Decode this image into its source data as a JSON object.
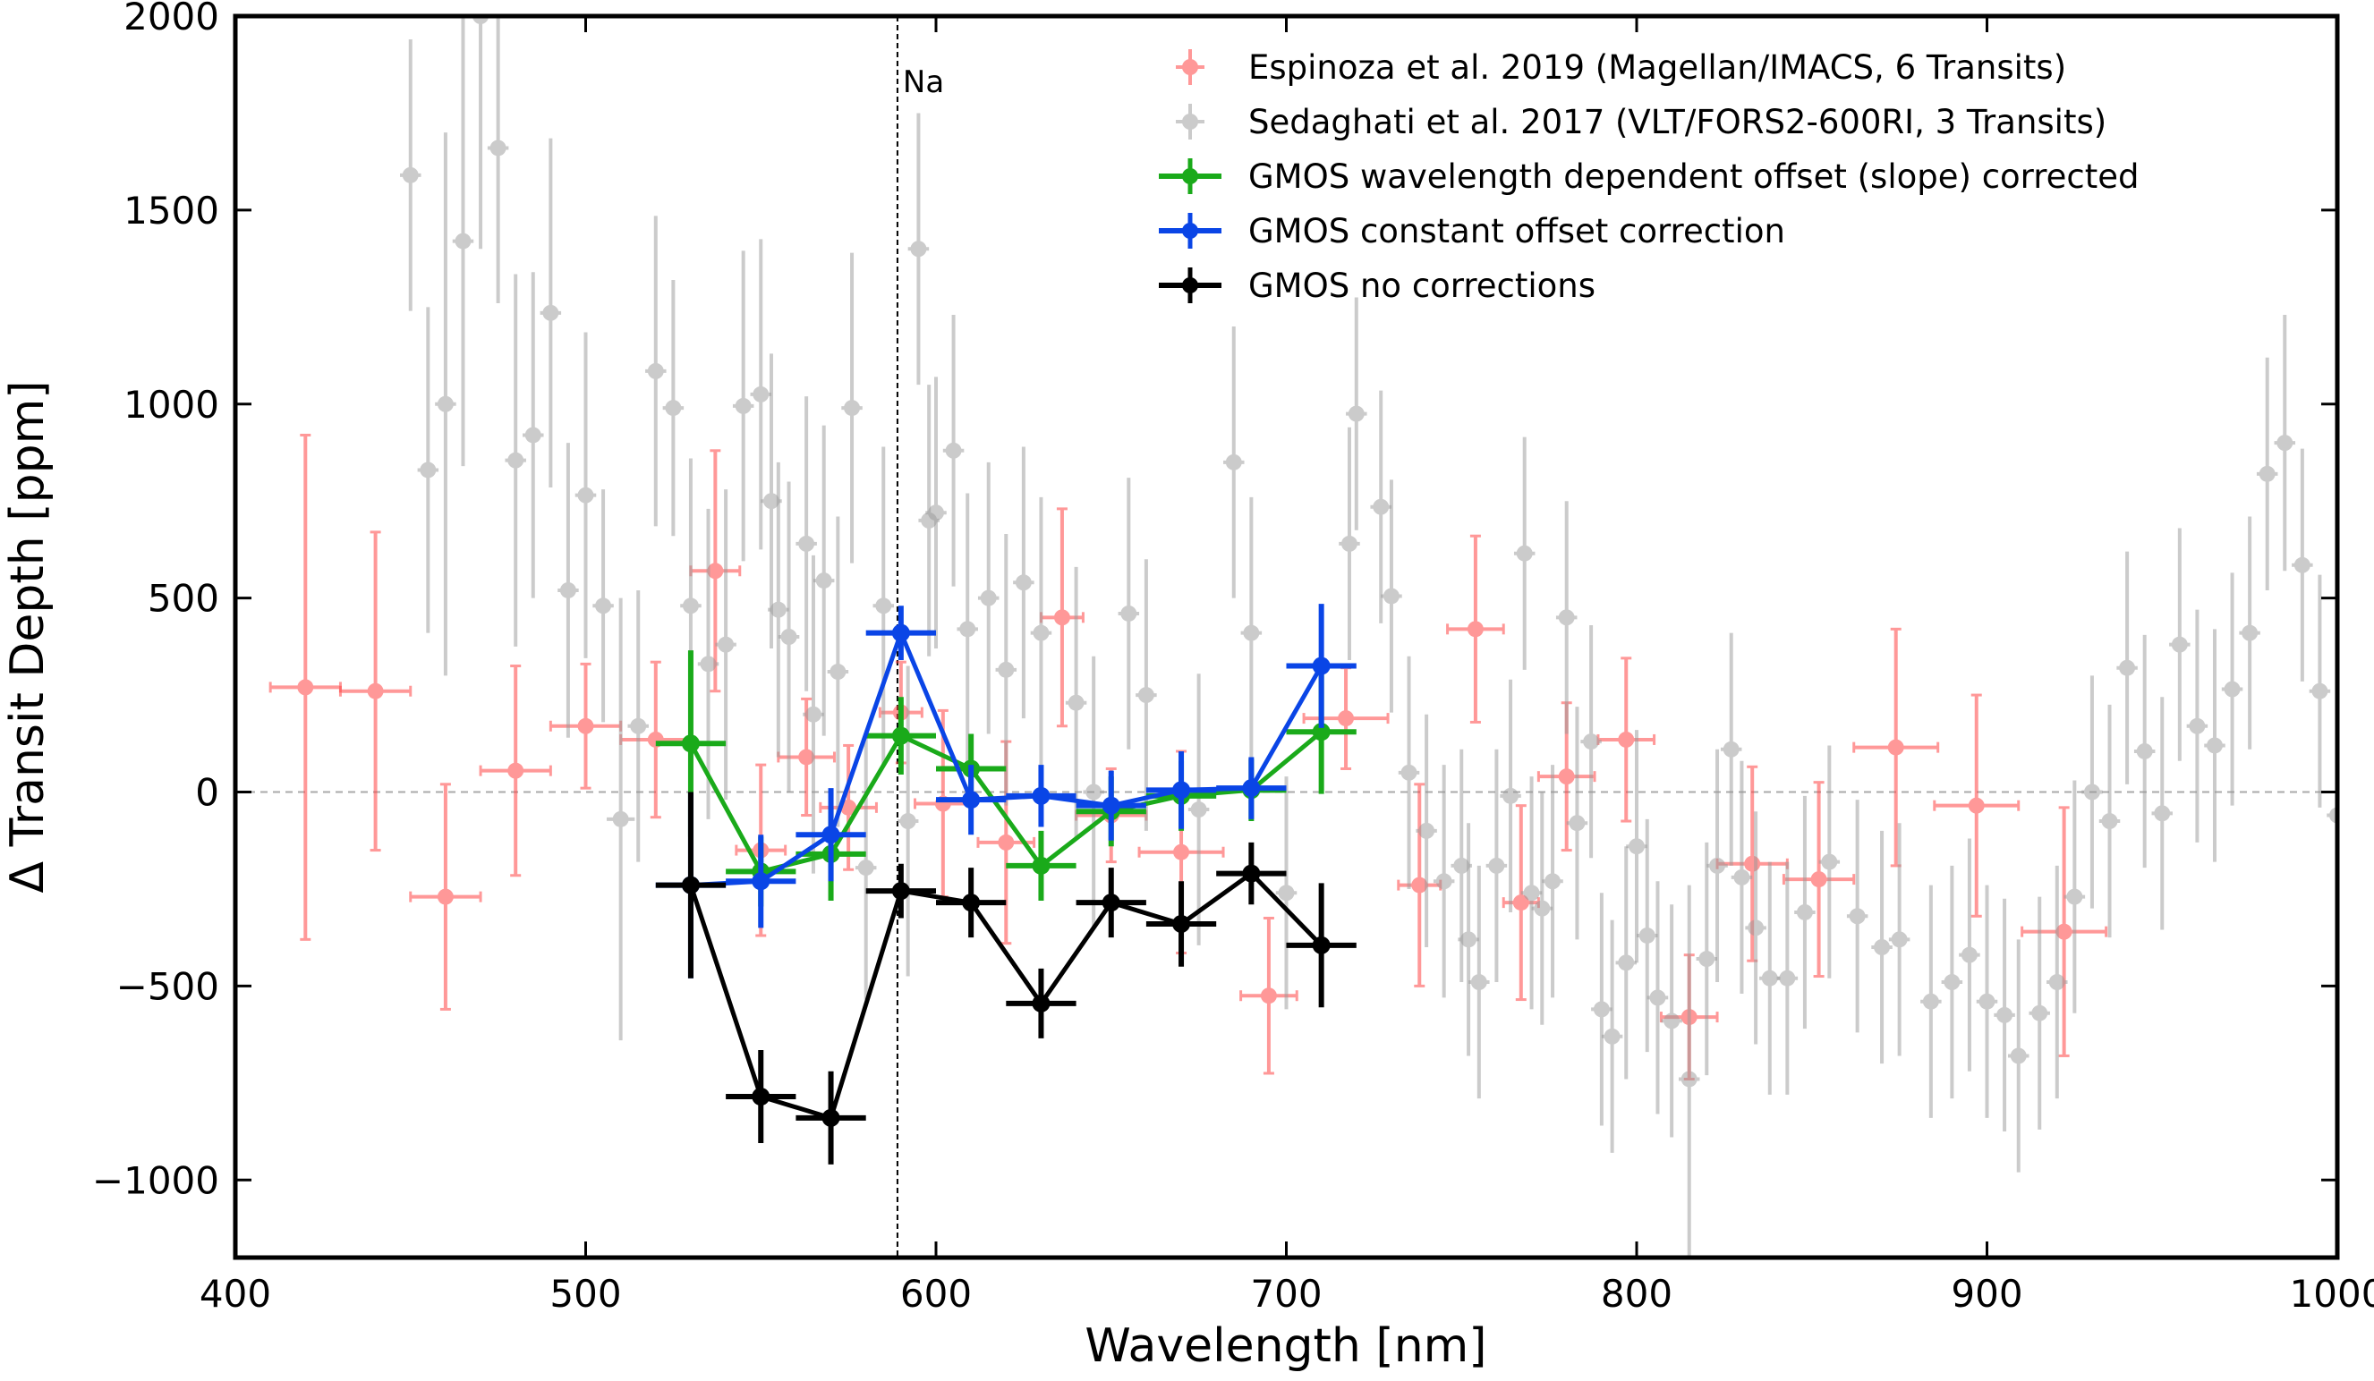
{
  "chart_data": {
    "type": "scatter",
    "title": "",
    "xlabel": "Wavelength [nm]",
    "ylabel": "Δ Transit Depth [ppm]",
    "xlim": [
      400,
      1000
    ],
    "ylim": [
      -1200,
      2000
    ],
    "xticks": [
      400,
      500,
      600,
      700,
      800,
      900,
      1000
    ],
    "yticks": [
      -1000,
      -500,
      0,
      500,
      1000,
      1500,
      2000
    ],
    "xtick_labels": [
      "400",
      "500",
      "600",
      "700",
      "800",
      "900",
      "1000"
    ],
    "ytick_labels": [
      "−1000",
      "−500",
      "0",
      "500",
      "1000",
      "1500",
      "2000"
    ],
    "grid": false,
    "reference_lines": [
      {
        "type": "horizontal",
        "value": 0,
        "style": "dashed",
        "color": "#aaaaaa"
      },
      {
        "type": "vertical",
        "value": 589,
        "style": "dashed",
        "color": "#000000",
        "label": "Na"
      }
    ],
    "legend_position": "top-right",
    "series": [
      {
        "name": "Espinoza et al. 2019 (Magellan/IMACS, 6 Transits)",
        "color": "#ff4444",
        "style": "errorbar-capped",
        "alpha": 0.55,
        "points": [
          {
            "x": 420,
            "y": 270,
            "xerr": 10,
            "yerr": 650
          },
          {
            "x": 440,
            "y": 260,
            "xerr": 10,
            "yerr": 410
          },
          {
            "x": 460,
            "y": -270,
            "xerr": 10,
            "yerr": 290
          },
          {
            "x": 480,
            "y": 55,
            "xerr": 10,
            "yerr": 270
          },
          {
            "x": 500,
            "y": 170,
            "xerr": 10,
            "yerr": 160
          },
          {
            "x": 520,
            "y": 135,
            "xerr": 10,
            "yerr": 200
          },
          {
            "x": 537,
            "y": 570,
            "xerr": 7,
            "yerr": 310
          },
          {
            "x": 550,
            "y": -150,
            "xerr": 7,
            "yerr": 220
          },
          {
            "x": 563,
            "y": 90,
            "xerr": 8,
            "yerr": 150
          },
          {
            "x": 575,
            "y": -40,
            "xerr": 8,
            "yerr": 160
          },
          {
            "x": 590,
            "y": 205,
            "xerr": 6,
            "yerr": 130
          },
          {
            "x": 602,
            "y": -30,
            "xerr": 8,
            "yerr": 240
          },
          {
            "x": 620,
            "y": -130,
            "xerr": 8,
            "yerr": 260
          },
          {
            "x": 636,
            "y": 450,
            "xerr": 6,
            "yerr": 280
          },
          {
            "x": 650,
            "y": -60,
            "xerr": 10,
            "yerr": 120
          },
          {
            "x": 670,
            "y": -155,
            "xerr": 12,
            "yerr": 260
          },
          {
            "x": 695,
            "y": -525,
            "xerr": 8,
            "yerr": 200
          },
          {
            "x": 717,
            "y": 190,
            "xerr": 12,
            "yerr": 130
          },
          {
            "x": 738,
            "y": -240,
            "xerr": 6,
            "yerr": 260
          },
          {
            "x": 754,
            "y": 420,
            "xerr": 8,
            "yerr": 240
          },
          {
            "x": 767,
            "y": -285,
            "xerr": 5,
            "yerr": 250
          },
          {
            "x": 780,
            "y": 40,
            "xerr": 8,
            "yerr": 190
          },
          {
            "x": 797,
            "y": 135,
            "xerr": 8,
            "yerr": 210
          },
          {
            "x": 815,
            "y": -580,
            "xerr": 8,
            "yerr": 160
          },
          {
            "x": 833,
            "y": -185,
            "xerr": 10,
            "yerr": 250
          },
          {
            "x": 852,
            "y": -225,
            "xerr": 10,
            "yerr": 250
          },
          {
            "x": 874,
            "y": 115,
            "xerr": 12,
            "yerr": 305
          },
          {
            "x": 897,
            "y": -35,
            "xerr": 12,
            "yerr": 285
          },
          {
            "x": 922,
            "y": -360,
            "xerr": 12,
            "yerr": 320
          }
        ]
      },
      {
        "name": "Sedaghati et al. 2017 (VLT/FORS2-600RI, 3 Transits)",
        "color": "#999999",
        "style": "errorbar",
        "alpha": 0.5,
        "points": [
          {
            "x": 450,
            "y": 1590,
            "yerr": 350
          },
          {
            "x": 455,
            "y": 830,
            "yerr": 420
          },
          {
            "x": 460,
            "y": 1000,
            "yerr": 700
          },
          {
            "x": 465,
            "y": 1420,
            "yerr": 580
          },
          {
            "x": 470,
            "y": 2000,
            "yerr": 600
          },
          {
            "x": 475,
            "y": 1660,
            "yerr": 400
          },
          {
            "x": 480,
            "y": 855,
            "yerr": 480
          },
          {
            "x": 485,
            "y": 920,
            "yerr": 420
          },
          {
            "x": 490,
            "y": 1235,
            "yerr": 450
          },
          {
            "x": 495,
            "y": 520,
            "yerr": 380
          },
          {
            "x": 500,
            "y": 765,
            "yerr": 420
          },
          {
            "x": 505,
            "y": 480,
            "yerr": 300
          },
          {
            "x": 510,
            "y": -70,
            "xerr": 4,
            "yerr": 570
          },
          {
            "x": 515,
            "y": 170,
            "yerr": 350
          },
          {
            "x": 520,
            "y": 1085,
            "yerr": 400
          },
          {
            "x": 525,
            "y": 990,
            "yerr": 330
          },
          {
            "x": 530,
            "y": 480,
            "yerr": 380
          },
          {
            "x": 535,
            "y": 330,
            "yerr": 400
          },
          {
            "x": 540,
            "y": 380,
            "yerr": 400
          },
          {
            "x": 545,
            "y": 995,
            "yerr": 400
          },
          {
            "x": 550,
            "y": 1025,
            "yerr": 400
          },
          {
            "x": 553,
            "y": 750,
            "yerr": 380
          },
          {
            "x": 555,
            "y": 470,
            "yerr": 380
          },
          {
            "x": 558,
            "y": 400,
            "yerr": 400
          },
          {
            "x": 563,
            "y": 640,
            "yerr": 380
          },
          {
            "x": 565,
            "y": 200,
            "yerr": 410
          },
          {
            "x": 568,
            "y": 545,
            "yerr": 400
          },
          {
            "x": 572,
            "y": 310,
            "yerr": 400
          },
          {
            "x": 576,
            "y": 990,
            "yerr": 400
          },
          {
            "x": 580,
            "y": -195,
            "yerr": 340
          },
          {
            "x": 585,
            "y": 480,
            "yerr": 410
          },
          {
            "x": 592,
            "y": -75,
            "yerr": 400
          },
          {
            "x": 595,
            "y": 1400,
            "yerr": 350
          },
          {
            "x": 598,
            "y": 700,
            "yerr": 350
          },
          {
            "x": 600,
            "y": 720,
            "yerr": 350
          },
          {
            "x": 605,
            "y": 880,
            "yerr": 350
          },
          {
            "x": 609,
            "y": 420,
            "yerr": 350
          },
          {
            "x": 615,
            "y": 500,
            "yerr": 350
          },
          {
            "x": 620,
            "y": 315,
            "yerr": 350
          },
          {
            "x": 625,
            "y": 540,
            "yerr": 350
          },
          {
            "x": 630,
            "y": 410,
            "yerr": 350
          },
          {
            "x": 640,
            "y": 230,
            "yerr": 350
          },
          {
            "x": 645,
            "y": 0,
            "yerr": 350
          },
          {
            "x": 655,
            "y": 460,
            "yerr": 350
          },
          {
            "x": 660,
            "y": 250,
            "yerr": 350
          },
          {
            "x": 675,
            "y": -45,
            "yerr": 350
          },
          {
            "x": 685,
            "y": 850,
            "yerr": 350
          },
          {
            "x": 690,
            "y": 410,
            "yerr": 350
          },
          {
            "x": 700,
            "y": -260,
            "yerr": 300
          },
          {
            "x": 718,
            "y": 640,
            "yerr": 300
          },
          {
            "x": 720,
            "y": 975,
            "yerr": 300
          },
          {
            "x": 727,
            "y": 735,
            "yerr": 300
          },
          {
            "x": 730,
            "y": 505,
            "yerr": 300
          },
          {
            "x": 735,
            "y": 50,
            "yerr": 300
          },
          {
            "x": 740,
            "y": -100,
            "yerr": 300
          },
          {
            "x": 745,
            "y": -230,
            "yerr": 300
          },
          {
            "x": 750,
            "y": -190,
            "yerr": 300
          },
          {
            "x": 752,
            "y": -380,
            "yerr": 300
          },
          {
            "x": 755,
            "y": -490,
            "yerr": 300
          },
          {
            "x": 760,
            "y": -190,
            "yerr": 300
          },
          {
            "x": 764,
            "y": -10,
            "yerr": 300
          },
          {
            "x": 768,
            "y": 615,
            "yerr": 300
          },
          {
            "x": 770,
            "y": -260,
            "yerr": 300
          },
          {
            "x": 773,
            "y": -300,
            "yerr": 300
          },
          {
            "x": 776,
            "y": -230,
            "yerr": 300
          },
          {
            "x": 780,
            "y": 450,
            "yerr": 300
          },
          {
            "x": 783,
            "y": -80,
            "yerr": 300
          },
          {
            "x": 787,
            "y": 130,
            "yerr": 300
          },
          {
            "x": 790,
            "y": -560,
            "yerr": 300
          },
          {
            "x": 793,
            "y": -630,
            "yerr": 300
          },
          {
            "x": 797,
            "y": -440,
            "yerr": 300
          },
          {
            "x": 800,
            "y": -140,
            "yerr": 300
          },
          {
            "x": 803,
            "y": -370,
            "yerr": 300
          },
          {
            "x": 806,
            "y": -530,
            "yerr": 300
          },
          {
            "x": 810,
            "y": -590,
            "yerr": 300
          },
          {
            "x": 815,
            "y": -740,
            "yerr": 500
          },
          {
            "x": 820,
            "y": -430,
            "yerr": 300
          },
          {
            "x": 823,
            "y": -190,
            "yerr": 300
          },
          {
            "x": 827,
            "y": 110,
            "yerr": 300
          },
          {
            "x": 830,
            "y": -220,
            "yerr": 300
          },
          {
            "x": 834,
            "y": -350,
            "yerr": 300
          },
          {
            "x": 838,
            "y": -480,
            "yerr": 300
          },
          {
            "x": 843,
            "y": -480,
            "yerr": 300
          },
          {
            "x": 848,
            "y": -310,
            "yerr": 300
          },
          {
            "x": 855,
            "y": -180,
            "yerr": 300
          },
          {
            "x": 863,
            "y": -320,
            "yerr": 300
          },
          {
            "x": 870,
            "y": -400,
            "yerr": 300
          },
          {
            "x": 875,
            "y": -380,
            "yerr": 300
          },
          {
            "x": 884,
            "y": -540,
            "yerr": 300
          },
          {
            "x": 890,
            "y": -490,
            "yerr": 300
          },
          {
            "x": 895,
            "y": -420,
            "yerr": 300
          },
          {
            "x": 900,
            "y": -540,
            "yerr": 300
          },
          {
            "x": 905,
            "y": -575,
            "yerr": 300
          },
          {
            "x": 909,
            "y": -680,
            "yerr": 300
          },
          {
            "x": 915,
            "y": -570,
            "yerr": 300
          },
          {
            "x": 920,
            "y": -490,
            "yerr": 300
          },
          {
            "x": 925,
            "y": -270,
            "yerr": 300
          },
          {
            "x": 930,
            "y": 0,
            "yerr": 300
          },
          {
            "x": 935,
            "y": -75,
            "yerr": 300
          },
          {
            "x": 940,
            "y": 320,
            "yerr": 300
          },
          {
            "x": 945,
            "y": 105,
            "yerr": 300
          },
          {
            "x": 950,
            "y": -55,
            "yerr": 300
          },
          {
            "x": 955,
            "y": 380,
            "yerr": 300
          },
          {
            "x": 960,
            "y": 170,
            "yerr": 300
          },
          {
            "x": 965,
            "y": 120,
            "yerr": 300
          },
          {
            "x": 970,
            "y": 265,
            "yerr": 300
          },
          {
            "x": 975,
            "y": 410,
            "yerr": 300
          },
          {
            "x": 980,
            "y": 820,
            "yerr": 300
          },
          {
            "x": 985,
            "y": 900,
            "yerr": 330
          },
          {
            "x": 990,
            "y": 585,
            "yerr": 300
          },
          {
            "x": 995,
            "y": 260,
            "yerr": 300
          },
          {
            "x": 1000,
            "y": -60,
            "yerr": 300
          }
        ]
      },
      {
        "name": "GMOS wavelength dependent offset (slope) corrected",
        "color": "#1aaa1a",
        "style": "errorbar-line",
        "points": [
          {
            "x": 530,
            "y": 125,
            "xerr": 10,
            "yerr": 240
          },
          {
            "x": 550,
            "y": -205,
            "xerr": 10,
            "yerr": 90
          },
          {
            "x": 570,
            "y": -160,
            "xerr": 10,
            "yerr": 120
          },
          {
            "x": 590,
            "y": 145,
            "xerr": 10,
            "yerr": 100
          },
          {
            "x": 610,
            "y": 60,
            "xerr": 10,
            "yerr": 90
          },
          {
            "x": 630,
            "y": -190,
            "xerr": 10,
            "yerr": 90
          },
          {
            "x": 650,
            "y": -50,
            "xerr": 10,
            "yerr": 90
          },
          {
            "x": 670,
            "y": -10,
            "xerr": 10,
            "yerr": 90
          },
          {
            "x": 690,
            "y": 5,
            "xerr": 10,
            "yerr": 80
          },
          {
            "x": 710,
            "y": 155,
            "xerr": 10,
            "yerr": 160
          }
        ]
      },
      {
        "name": "GMOS constant offset correction",
        "color": "#0a45e6",
        "style": "errorbar-line",
        "points": [
          {
            "x": 530,
            "y": -240,
            "xerr": 10,
            "yerr": 240
          },
          {
            "x": 550,
            "y": -230,
            "xerr": 10,
            "yerr": 120
          },
          {
            "x": 570,
            "y": -110,
            "xerr": 10,
            "yerr": 120
          },
          {
            "x": 590,
            "y": 410,
            "xerr": 10,
            "yerr": 70
          },
          {
            "x": 610,
            "y": -20,
            "xerr": 10,
            "yerr": 90
          },
          {
            "x": 630,
            "y": -10,
            "xerr": 10,
            "yerr": 80
          },
          {
            "x": 650,
            "y": -35,
            "xerr": 10,
            "yerr": 90
          },
          {
            "x": 670,
            "y": 5,
            "xerr": 10,
            "yerr": 100
          },
          {
            "x": 690,
            "y": 10,
            "xerr": 10,
            "yerr": 80
          },
          {
            "x": 710,
            "y": 325,
            "xerr": 10,
            "yerr": 160
          }
        ]
      },
      {
        "name": "GMOS no corrections",
        "color": "#000000",
        "style": "errorbar-line",
        "points": [
          {
            "x": 530,
            "y": -240,
            "xerr": 10,
            "yerr": 240
          },
          {
            "x": 550,
            "y": -785,
            "xerr": 10,
            "yerr": 120
          },
          {
            "x": 570,
            "y": -840,
            "xerr": 10,
            "yerr": 120
          },
          {
            "x": 590,
            "y": -255,
            "xerr": 10,
            "yerr": 70
          },
          {
            "x": 610,
            "y": -285,
            "xerr": 10,
            "yerr": 90
          },
          {
            "x": 630,
            "y": -545,
            "xerr": 10,
            "yerr": 90
          },
          {
            "x": 650,
            "y": -285,
            "xerr": 10,
            "yerr": 90
          },
          {
            "x": 670,
            "y": -340,
            "xerr": 10,
            "yerr": 110
          },
          {
            "x": 690,
            "y": -210,
            "xerr": 10,
            "yerr": 80
          },
          {
            "x": 710,
            "y": -395,
            "xerr": 10,
            "yerr": 160
          }
        ]
      }
    ]
  }
}
